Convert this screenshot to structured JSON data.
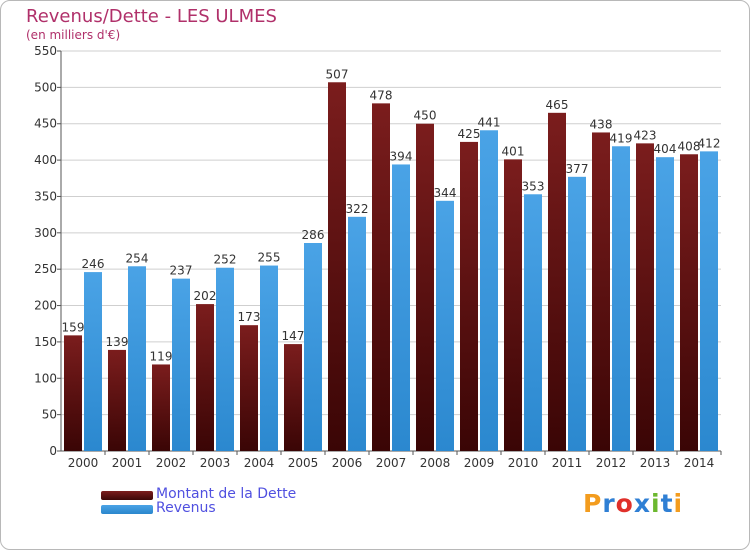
{
  "header": {
    "title": "Revenus/Dette - LES ULMES",
    "subtitle": "(en milliers d'€)"
  },
  "logo": {
    "text": "Proxiti",
    "letter_colors": [
      "#f39c1e",
      "#2f7fd4",
      "#e0302a",
      "#2f7fd4",
      "#6cb82f",
      "#2f7fd4",
      "#f39c1e"
    ]
  },
  "colors": {
    "dette": "#7b1d1d",
    "revenus": "#4aa3e6",
    "grid": "#cfcfcf",
    "axis_text": "#333333"
  },
  "chart_data": {
    "type": "bar",
    "title": "Revenus/Dette - LES ULMES",
    "subtitle": "(en milliers d'€)",
    "categories": [
      "2000",
      "2001",
      "2002",
      "2003",
      "2004",
      "2005",
      "2006",
      "2007",
      "2008",
      "2009",
      "2010",
      "2011",
      "2012",
      "2013",
      "2014"
    ],
    "series": [
      {
        "name": "Montant de la Dette",
        "values": [
          159,
          139,
          119,
          202,
          173,
          147,
          507,
          478,
          450,
          425,
          401,
          465,
          438,
          423,
          408
        ]
      },
      {
        "name": "Revenus",
        "values": [
          246,
          254,
          237,
          252,
          255,
          286,
          322,
          394,
          344,
          441,
          353,
          377,
          419,
          404,
          412
        ]
      }
    ],
    "ylim": [
      0,
      550
    ],
    "yticks": [
      0,
      50,
      100,
      150,
      200,
      250,
      300,
      350,
      400,
      450,
      500,
      550
    ],
    "grid": true,
    "legend_position": "bottom-left"
  }
}
